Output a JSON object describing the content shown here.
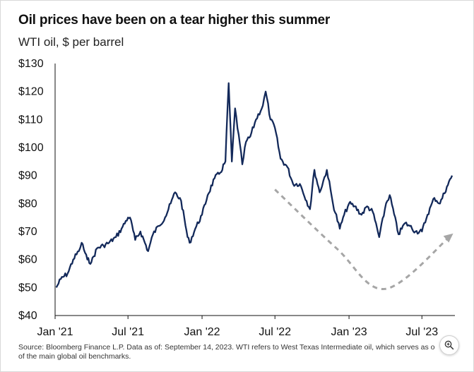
{
  "chart_data": {
    "type": "line",
    "title": "Oil prices have been on a tear higher this summer",
    "subtitle": "WTI oil, $ per barrel",
    "xlabel": "",
    "ylabel": "",
    "xlim": [
      "2021-01-01",
      "2023-09-14"
    ],
    "ylim": [
      40,
      130
    ],
    "y_ticks": [
      {
        "value": 130,
        "label": "$130"
      },
      {
        "value": 120,
        "label": "$120"
      },
      {
        "value": 110,
        "label": "$110"
      },
      {
        "value": 100,
        "label": "$100"
      },
      {
        "value": 90,
        "label": "$90"
      },
      {
        "value": 80,
        "label": "$80"
      },
      {
        "value": 70,
        "label": "$70"
      },
      {
        "value": 60,
        "label": "$60"
      },
      {
        "value": 50,
        "label": "$50"
      },
      {
        "value": 40,
        "label": "$40"
      }
    ],
    "x_ticks": [
      {
        "date": "2021-01-01",
        "label": "Jan '21"
      },
      {
        "date": "2021-07-01",
        "label": "Jul '21"
      },
      {
        "date": "2022-01-01",
        "label": "Jan '22"
      },
      {
        "date": "2022-07-01",
        "label": "Jul '22"
      },
      {
        "date": "2023-01-01",
        "label": "Jan '23"
      },
      {
        "date": "2023-07-01",
        "label": "Jul '23"
      }
    ],
    "grid": false,
    "line_color": "#13295a",
    "series": [
      {
        "x": [
          "2021-01-04",
          "2021-01-15",
          "2021-02-01",
          "2021-02-15",
          "2021-03-01",
          "2021-03-08",
          "2021-03-22",
          "2021-04-01",
          "2021-04-15",
          "2021-05-01",
          "2021-05-15",
          "2021-06-01",
          "2021-06-15",
          "2021-07-01",
          "2021-07-06",
          "2021-07-19",
          "2021-08-01",
          "2021-08-20",
          "2021-09-01",
          "2021-09-15",
          "2021-10-01",
          "2021-10-15",
          "2021-10-26",
          "2021-11-10",
          "2021-11-26",
          "2021-12-01",
          "2021-12-15",
          "2022-01-01",
          "2022-01-15",
          "2022-02-01",
          "2022-02-15",
          "2022-02-28",
          "2022-03-08",
          "2022-03-16",
          "2022-03-24",
          "2022-04-11",
          "2022-04-20",
          "2022-05-01",
          "2022-05-15",
          "2022-06-01",
          "2022-06-08",
          "2022-06-20",
          "2022-07-01",
          "2022-07-15",
          "2022-08-01",
          "2022-08-15",
          "2022-09-01",
          "2022-09-26",
          "2022-10-07",
          "2022-10-20",
          "2022-11-07",
          "2022-11-22",
          "2022-12-09",
          "2022-12-20",
          "2023-01-01",
          "2023-01-15",
          "2023-02-01",
          "2023-02-15",
          "2023-03-01",
          "2023-03-17",
          "2023-04-03",
          "2023-04-12",
          "2023-05-04",
          "2023-05-20",
          "2023-06-01",
          "2023-06-15",
          "2023-07-01",
          "2023-07-15",
          "2023-08-01",
          "2023-08-15",
          "2023-09-01",
          "2023-09-14"
        ],
        "y": [
          50,
          53,
          55,
          60,
          63,
          66,
          60,
          59,
          64,
          65,
          66,
          68,
          71,
          75,
          75,
          67,
          70,
          63,
          69,
          72,
          75,
          80,
          84,
          81,
          68,
          66,
          71,
          76,
          83,
          89,
          91,
          95,
          123,
          95,
          114,
          94,
          102,
          104,
          110,
          115,
          120,
          110,
          107,
          96,
          93,
          87,
          87,
          78,
          92,
          84,
          92,
          80,
          71,
          76,
          80,
          79,
          76,
          79,
          77,
          68,
          80,
          83,
          69,
          73,
          72,
          70,
          70,
          76,
          82,
          80,
          86,
          90
        ]
      }
    ],
    "annotation": {
      "type": "dashed-arrow",
      "color": "#a6a6a6",
      "points": [
        [
          "2022-07-01",
          85
        ],
        [
          "2022-12-01",
          64
        ],
        [
          "2023-04-01",
          49.5
        ],
        [
          "2023-09-14",
          69
        ]
      ]
    }
  },
  "source_text": {
    "line1": "Source: Bloomberg Finance L.P.  Data as of: September 14, 2023. WTI refers to West Texas Intermediate oil, which serves as o",
    "line2": "of the main global oil benchmarks."
  },
  "icons": {
    "zoom": "zoom-in-icon"
  }
}
